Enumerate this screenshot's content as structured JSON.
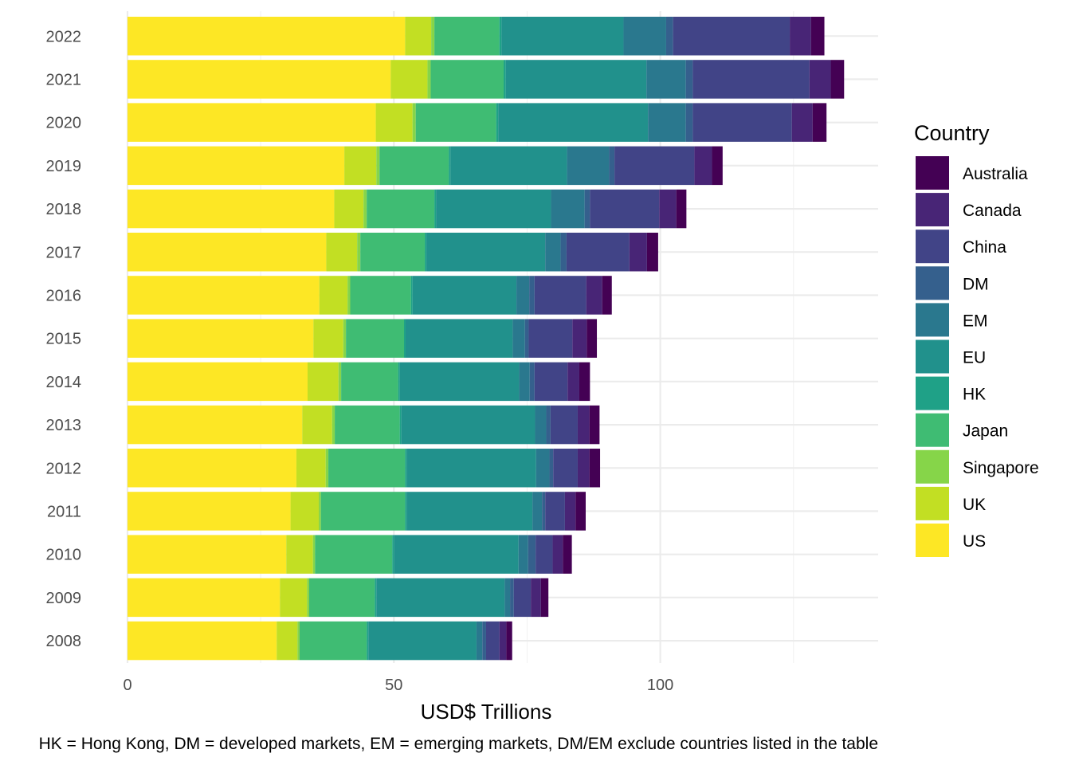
{
  "chart_data": {
    "type": "bar",
    "orientation": "horizontal",
    "stacked": true,
    "title": "",
    "xlabel": "USD$ Trillions",
    "ylabel": "",
    "xlim": [
      0,
      140
    ],
    "x_ticks": [
      0,
      50,
      100
    ],
    "grid": true,
    "legend_position": "right",
    "legend_title": "Country",
    "caption": "HK = Hong Kong, DM = developed markets, EM = emerging markets, DM/EM exclude countries listed in the table",
    "categories": [
      "2008",
      "2009",
      "2010",
      "2011",
      "2012",
      "2013",
      "2014",
      "2015",
      "2016",
      "2017",
      "2018",
      "2019",
      "2020",
      "2021",
      "2022"
    ],
    "series": [
      {
        "name": "US",
        "color": "#FDE725",
        "values": [
          28.0,
          28.6,
          29.8,
          30.6,
          31.7,
          32.8,
          33.8,
          34.9,
          36.0,
          37.3,
          38.8,
          40.7,
          46.6,
          49.4,
          52.1
        ]
      },
      {
        "name": "UK",
        "color": "#C2DF23",
        "values": [
          3.9,
          5.1,
          5.0,
          5.3,
          5.5,
          5.6,
          5.8,
          5.6,
          5.3,
          5.8,
          5.5,
          6.0,
          6.9,
          6.9,
          4.9
        ]
      },
      {
        "name": "Singapore",
        "color": "#86D549",
        "values": [
          0.4,
          0.4,
          0.4,
          0.4,
          0.5,
          0.5,
          0.5,
          0.5,
          0.5,
          0.6,
          0.6,
          0.6,
          0.6,
          0.6,
          0.6
        ]
      },
      {
        "name": "Japan",
        "color": "#3FBC73",
        "values": [
          12.6,
          12.3,
          14.5,
          15.8,
          14.4,
          12.2,
          10.7,
          10.9,
          11.4,
          12.1,
          12.7,
          13.0,
          15.1,
          13.7,
          12.2
        ]
      },
      {
        "name": "HK",
        "color": "#1FA187",
        "values": [
          0.3,
          0.3,
          0.3,
          0.3,
          0.3,
          0.3,
          0.3,
          0.3,
          0.3,
          0.3,
          0.3,
          0.3,
          0.4,
          0.4,
          0.4
        ]
      },
      {
        "name": "EU",
        "color": "#21918C",
        "values": [
          20.3,
          24.1,
          23.4,
          23.6,
          24.3,
          25.1,
          22.4,
          20.1,
          19.5,
          22.3,
          21.6,
          21.9,
          28.1,
          26.4,
          22.9
        ]
      },
      {
        "name": "EM",
        "color": "#2A788E",
        "values": [
          1.1,
          1.0,
          1.8,
          1.8,
          2.5,
          2.1,
          2.0,
          2.3,
          2.4,
          2.9,
          6.3,
          7.9,
          7.1,
          7.4,
          8.0
        ]
      },
      {
        "name": "DM",
        "color": "#35608D",
        "values": [
          0.7,
          0.7,
          1.4,
          0.6,
          0.7,
          0.8,
          0.9,
          0.7,
          1.0,
          1.1,
          1.0,
          1.0,
          1.3,
          1.3,
          1.3
        ]
      },
      {
        "name": "China",
        "color": "#414487",
        "values": [
          2.5,
          3.2,
          3.2,
          3.7,
          4.6,
          5.1,
          6.2,
          8.2,
          9.7,
          11.8,
          13.0,
          15.0,
          18.6,
          21.9,
          21.9
        ]
      },
      {
        "name": "Canada",
        "color": "#482576",
        "values": [
          1.3,
          1.9,
          1.9,
          2.0,
          2.2,
          2.2,
          2.2,
          2.7,
          3.0,
          3.3,
          3.2,
          3.3,
          3.9,
          4.0,
          4.0
        ]
      },
      {
        "name": "Australia",
        "color": "#440154",
        "values": [
          1.1,
          1.4,
          1.7,
          1.9,
          2.0,
          1.9,
          2.0,
          1.9,
          1.8,
          2.1,
          1.9,
          2.0,
          2.6,
          2.5,
          2.5
        ]
      }
    ]
  }
}
